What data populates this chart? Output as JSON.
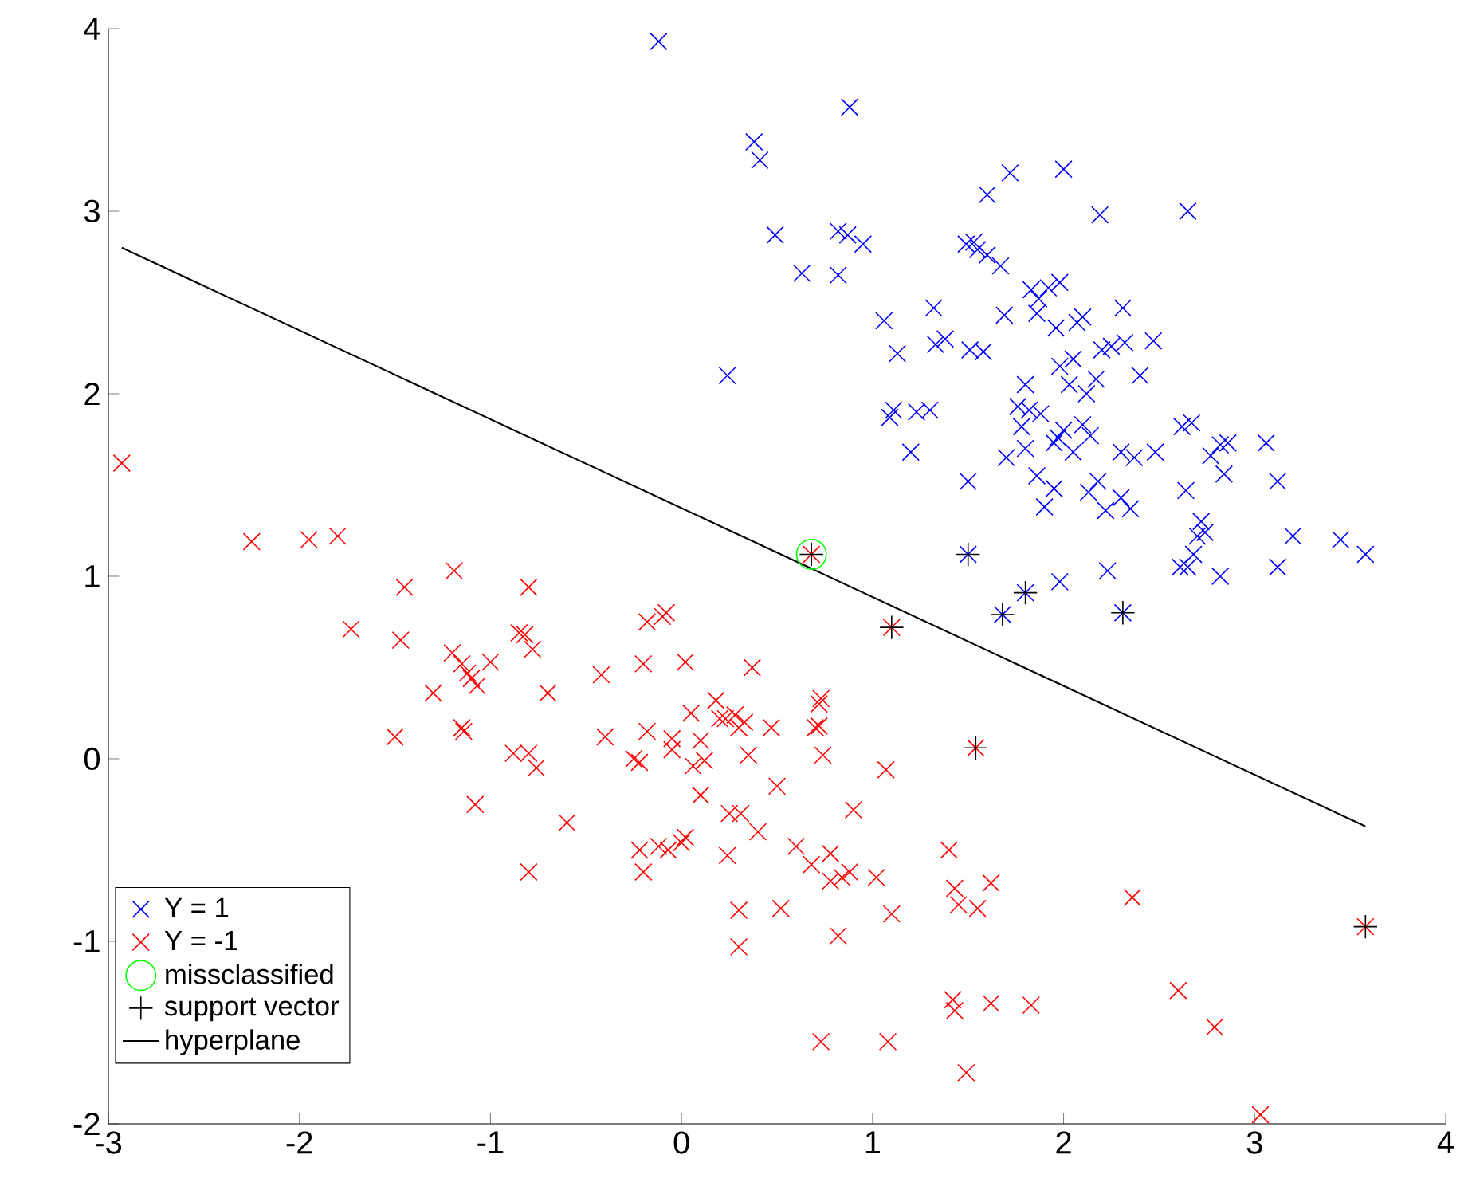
{
  "chart_data": {
    "type": "scatter",
    "xlim": [
      -3,
      4
    ],
    "ylim": [
      -2,
      4
    ],
    "xticks": [
      -3,
      -2,
      -1,
      0,
      1,
      2,
      3,
      4
    ],
    "yticks": [
      -2,
      -1,
      0,
      1,
      2,
      3,
      4
    ],
    "legend": "bottom left",
    "series": [
      {
        "name": "Y = 1",
        "color": "#0000ff",
        "marker": "cross",
        "x": [
          -0.12,
          0.38,
          0.41,
          0.88,
          0.49,
          0.63,
          0.82,
          0.87,
          0.95,
          0.82,
          0.24,
          1.06,
          1.13,
          1.09,
          1.11,
          1.2,
          1.23,
          1.3,
          1.33,
          1.38,
          1.32,
          1.49,
          1.53,
          1.51,
          1.58,
          1.55,
          1.6,
          1.6,
          1.72,
          1.69,
          1.67,
          1.83,
          1.87,
          1.92,
          1.98,
          2.0,
          2.19,
          1.86,
          1.96,
          2.07,
          2.1,
          2.05,
          2.17,
          2.2,
          2.25,
          2.32,
          2.31,
          2.4,
          2.47,
          2.03,
          1.76,
          1.78,
          1.82,
          1.88,
          1.95,
          2.0,
          2.1,
          2.14,
          1.8,
          1.86,
          1.9,
          1.97,
          2.05,
          2.3,
          2.37,
          2.48,
          2.62,
          2.67,
          2.77,
          2.82,
          2.86,
          3.06,
          2.84,
          2.64,
          2.72,
          2.7,
          2.74,
          2.68,
          2.65,
          2.61,
          2.82,
          3.12,
          3.12,
          3.2,
          3.45,
          3.58,
          2.65,
          2.13,
          2.18,
          2.22,
          2.3,
          2.35,
          2.23,
          1.98,
          1.5,
          1.8,
          1.98,
          2.12,
          1.7,
          1.95,
          1.5,
          1.68,
          1.8,
          2.31
        ],
        "values": [
          3.93,
          3.38,
          3.28,
          3.57,
          2.87,
          2.66,
          2.89,
          2.87,
          2.82,
          2.65,
          2.1,
          2.4,
          2.22,
          1.87,
          1.91,
          1.68,
          1.9,
          1.91,
          2.27,
          2.3,
          2.47,
          2.82,
          2.83,
          2.24,
          2.23,
          2.79,
          2.76,
          3.09,
          3.21,
          2.43,
          2.7,
          2.57,
          2.52,
          2.58,
          2.61,
          3.23,
          2.98,
          2.44,
          2.36,
          2.39,
          2.42,
          2.19,
          2.08,
          2.24,
          2.26,
          2.28,
          2.47,
          2.1,
          2.29,
          2.05,
          1.93,
          1.82,
          1.91,
          1.89,
          1.73,
          1.8,
          1.83,
          1.77,
          1.7,
          1.55,
          1.38,
          1.76,
          1.68,
          1.68,
          1.65,
          1.68,
          1.82,
          1.84,
          1.66,
          1.72,
          1.73,
          1.73,
          1.56,
          1.47,
          1.3,
          1.22,
          1.24,
          1.12,
          1.05,
          1.05,
          1.0,
          1.05,
          1.52,
          1.22,
          1.2,
          1.12,
          3.0,
          1.46,
          1.52,
          1.36,
          1.43,
          1.37,
          1.03,
          0.97,
          1.52,
          2.05,
          2.15,
          2.0,
          1.65,
          1.48,
          1.12,
          0.79,
          0.91,
          0.8
        ]
      },
      {
        "name": "Y = -1",
        "color": "#ff0000",
        "marker": "cross",
        "x": [
          -2.93,
          -2.25,
          -1.95,
          -1.8,
          -1.45,
          -1.19,
          -0.8,
          -1.73,
          -1.47,
          -1.3,
          -1.2,
          -1.15,
          -1.12,
          -1.07,
          -1.1,
          -1.0,
          -0.85,
          -0.82,
          -0.78,
          -0.7,
          -1.5,
          -1.15,
          -1.14,
          -1.08,
          -0.88,
          -0.8,
          -0.76,
          -0.6,
          -0.8,
          -0.42,
          -0.4,
          -0.25,
          -0.22,
          -0.18,
          -0.1,
          -0.08,
          -0.18,
          -0.2,
          0.02,
          -0.05,
          -0.22,
          -0.2,
          -0.12,
          -0.07,
          0.0,
          0.02,
          0.1,
          0.18,
          0.23,
          0.3,
          0.33,
          0.35,
          0.37,
          0.28,
          0.24,
          0.31,
          0.3,
          0.3,
          0.47,
          0.5,
          0.6,
          0.52,
          0.68,
          0.7,
          0.72,
          0.72,
          0.73,
          0.74,
          0.06,
          0.12,
          0.1,
          0.2,
          0.25,
          0.4,
          0.78,
          0.78,
          0.84,
          0.9,
          0.88,
          1.02,
          0.82,
          1.07,
          1.1,
          1.08,
          0.73,
          1.4,
          1.43,
          1.45,
          1.55,
          1.62,
          1.42,
          1.43,
          1.62,
          1.83,
          1.49,
          2.36,
          2.6,
          2.79,
          3.03,
          -0.05,
          0.05,
          0.68,
          1.1,
          1.54,
          3.58
        ],
        "values": [
          1.62,
          1.19,
          1.2,
          1.22,
          0.94,
          1.03,
          0.94,
          0.71,
          0.65,
          0.36,
          0.58,
          0.52,
          0.47,
          0.4,
          0.44,
          0.53,
          0.69,
          0.68,
          0.6,
          0.36,
          0.12,
          0.17,
          0.15,
          -0.25,
          0.03,
          0.03,
          -0.05,
          -0.35,
          -0.62,
          0.46,
          0.12,
          0.0,
          -0.02,
          0.15,
          0.78,
          0.8,
          0.75,
          0.52,
          0.53,
          0.11,
          -0.5,
          -0.62,
          -0.48,
          -0.5,
          -0.46,
          -0.43,
          0.1,
          0.32,
          0.22,
          0.17,
          0.2,
          0.02,
          0.5,
          0.24,
          -0.53,
          -0.3,
          -0.83,
          -1.03,
          0.17,
          -0.15,
          -0.48,
          -0.82,
          -0.58,
          0.17,
          0.18,
          0.3,
          0.33,
          0.02,
          -0.04,
          -0.01,
          -0.2,
          0.22,
          -0.3,
          -0.4,
          -0.52,
          -0.67,
          -0.65,
          -0.28,
          -0.62,
          -0.65,
          -0.97,
          -0.06,
          -0.85,
          -1.55,
          -1.55,
          -0.5,
          -0.71,
          -0.8,
          -0.82,
          -0.68,
          -1.32,
          -1.38,
          -1.34,
          -1.35,
          -1.72,
          -0.76,
          -1.27,
          -1.47,
          -1.95,
          0.05,
          0.25,
          1.12,
          0.72,
          0.06,
          -0.92
        ]
      },
      {
        "name": "missclassified",
        "color": "#00ff00",
        "marker": "circle",
        "x": [
          0.68
        ],
        "values": [
          1.12
        ]
      },
      {
        "name": "support vector",
        "color": "#000000",
        "marker": "plus",
        "x": [
          1.5,
          1.68,
          1.8,
          2.31,
          0.68,
          1.1,
          1.54,
          3.58
        ],
        "values": [
          1.12,
          0.79,
          0.91,
          0.8,
          1.12,
          0.72,
          0.06,
          -0.92
        ]
      },
      {
        "name": "hyperplane",
        "type": "line",
        "color": "#000000",
        "marker": "none",
        "line_style": "solid",
        "x": [
          -2.93,
          3.58
        ],
        "values": [
          2.8,
          -0.37
        ]
      }
    ]
  }
}
